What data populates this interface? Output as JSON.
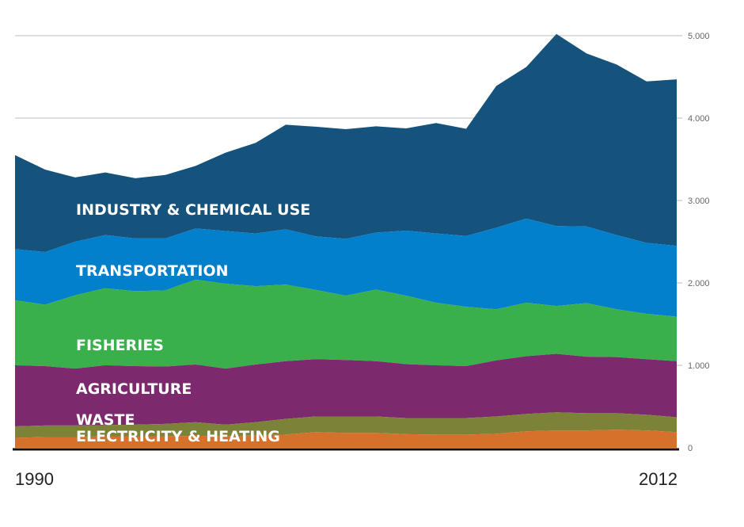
{
  "chart_data": {
    "type": "area",
    "stacked": true,
    "x": [
      1990,
      1991,
      1992,
      1993,
      1994,
      1995,
      1996,
      1997,
      1998,
      1999,
      2000,
      2001,
      2002,
      2003,
      2004,
      2005,
      2006,
      2007,
      2008,
      2009,
      2010,
      2011,
      2012
    ],
    "x_start_label": "1990",
    "x_end_label": "2012",
    "ylim": [
      0,
      5000
    ],
    "yticks": [
      0,
      1000,
      2000,
      3000,
      4000,
      5000
    ],
    "ytick_labels": [
      "0",
      "1.000",
      "2.000",
      "3.000",
      "4.000",
      "5.000"
    ],
    "y_axis_position": "right",
    "grid": true,
    "series": [
      {
        "name": "ELECTRICITY & HEATING",
        "color": "#d5712a",
        "values": [
          120,
          130,
          130,
          140,
          140,
          140,
          145,
          140,
          150,
          160,
          190,
          180,
          180,
          165,
          160,
          160,
          170,
          200,
          210,
          210,
          220,
          210,
          190
        ]
      },
      {
        "name": "WASTE",
        "color": "#7c8238",
        "values": [
          140,
          140,
          140,
          135,
          140,
          150,
          165,
          140,
          160,
          190,
          190,
          200,
          200,
          195,
          200,
          200,
          210,
          210,
          220,
          210,
          200,
          190,
          180
        ]
      },
      {
        "name": "AGRICULTURE",
        "color": "#7c2a6d",
        "values": [
          740,
          720,
          690,
          725,
          710,
          695,
          700,
          680,
          700,
          700,
          695,
          685,
          670,
          655,
          640,
          630,
          680,
          700,
          710,
          685,
          680,
          675,
          680
        ]
      },
      {
        "name": "FISHERIES",
        "color": "#39b04b",
        "values": [
          790,
          745,
          890,
          935,
          910,
          925,
          1030,
          1030,
          950,
          930,
          840,
          780,
          870,
          830,
          760,
          720,
          620,
          650,
          580,
          650,
          580,
          550,
          540
        ]
      },
      {
        "name": "TRANSPORTATION",
        "color": "#0280cc",
        "values": [
          620,
          640,
          650,
          645,
          640,
          630,
          620,
          640,
          640,
          670,
          650,
          690,
          690,
          790,
          840,
          860,
          990,
          1020,
          970,
          930,
          900,
          860,
          860
        ]
      },
      {
        "name": "INDUSTRY & CHEMICAL USE",
        "color": "#15527c",
        "values": [
          1140,
          1000,
          780,
          760,
          730,
          770,
          760,
          950,
          1100,
          1270,
          1330,
          1330,
          1290,
          1240,
          1340,
          1300,
          1720,
          1840,
          2330,
          2100,
          2070,
          1960,
          2020
        ]
      }
    ]
  }
}
